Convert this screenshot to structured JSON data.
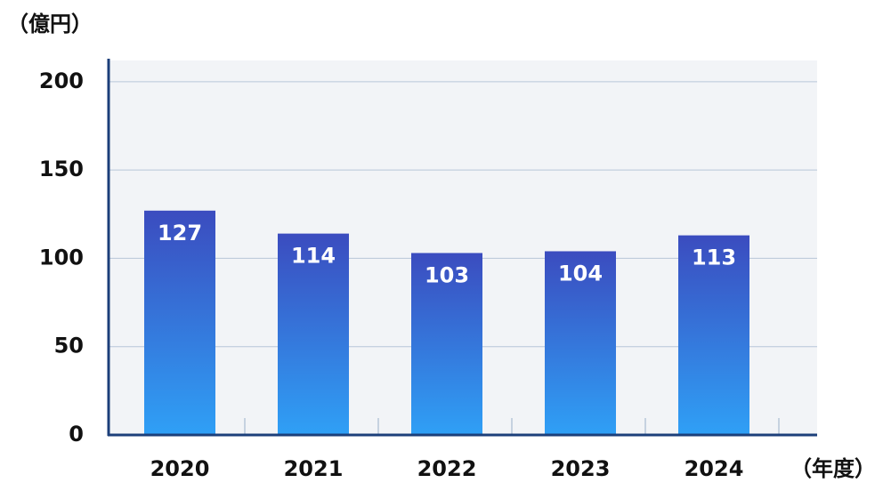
{
  "chart_data": {
    "type": "bar",
    "y_axis_label": "（億円）",
    "x_axis_label": "（年度）",
    "categories": [
      "2020",
      "2021",
      "2022",
      "2023",
      "2024"
    ],
    "values": [
      127,
      114,
      103,
      104,
      113
    ],
    "ylim": [
      0,
      212
    ],
    "yticks": [
      0,
      50,
      100,
      150,
      200
    ],
    "grid": true
  }
}
